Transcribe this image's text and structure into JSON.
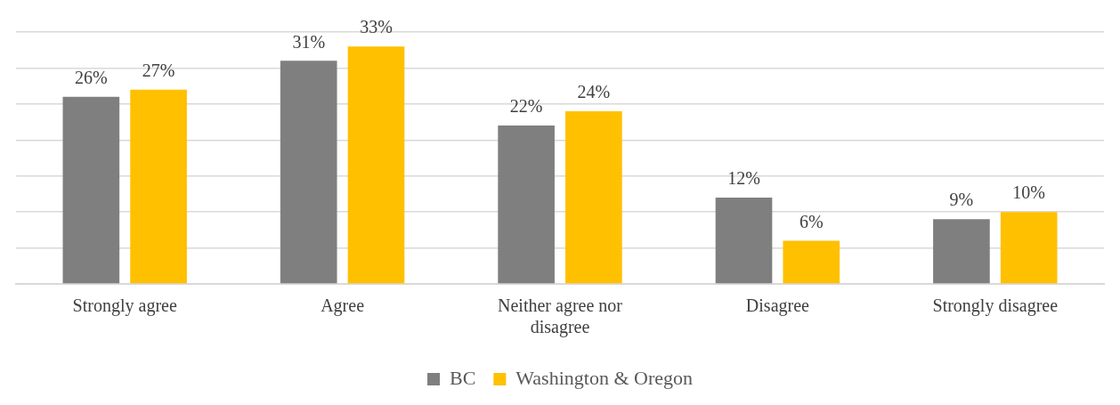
{
  "chart_data": {
    "type": "bar",
    "categories": [
      "Strongly agree",
      "Agree",
      "Neither agree nor disagree",
      "Disagree",
      "Strongly disagree"
    ],
    "series": [
      {
        "name": "BC",
        "color": "#7f7f7f",
        "values": [
          26,
          31,
          22,
          12,
          9
        ],
        "value_labels": [
          "26%",
          "31%",
          "22%",
          "12%",
          "9%"
        ]
      },
      {
        "name": "Washington & Oregon",
        "color": "#ffc000",
        "values": [
          27,
          33,
          24,
          6,
          10
        ],
        "value_labels": [
          "27%",
          "33%",
          "24%",
          "6%",
          "10%"
        ]
      }
    ],
    "ylim": [
      0,
      35
    ],
    "yticks": [
      {
        "value": 0,
        "label": null
      },
      {
        "value": 5,
        "label": null
      },
      {
        "value": 10,
        "label": null
      },
      {
        "value": 15,
        "label": null
      },
      {
        "value": 20,
        "label": null
      },
      {
        "value": 25,
        "label": null
      },
      {
        "value": 30,
        "label": null
      },
      {
        "value": 35,
        "label": null
      }
    ],
    "grid": "y",
    "legend": "bottom",
    "tick_labels": "x"
  }
}
